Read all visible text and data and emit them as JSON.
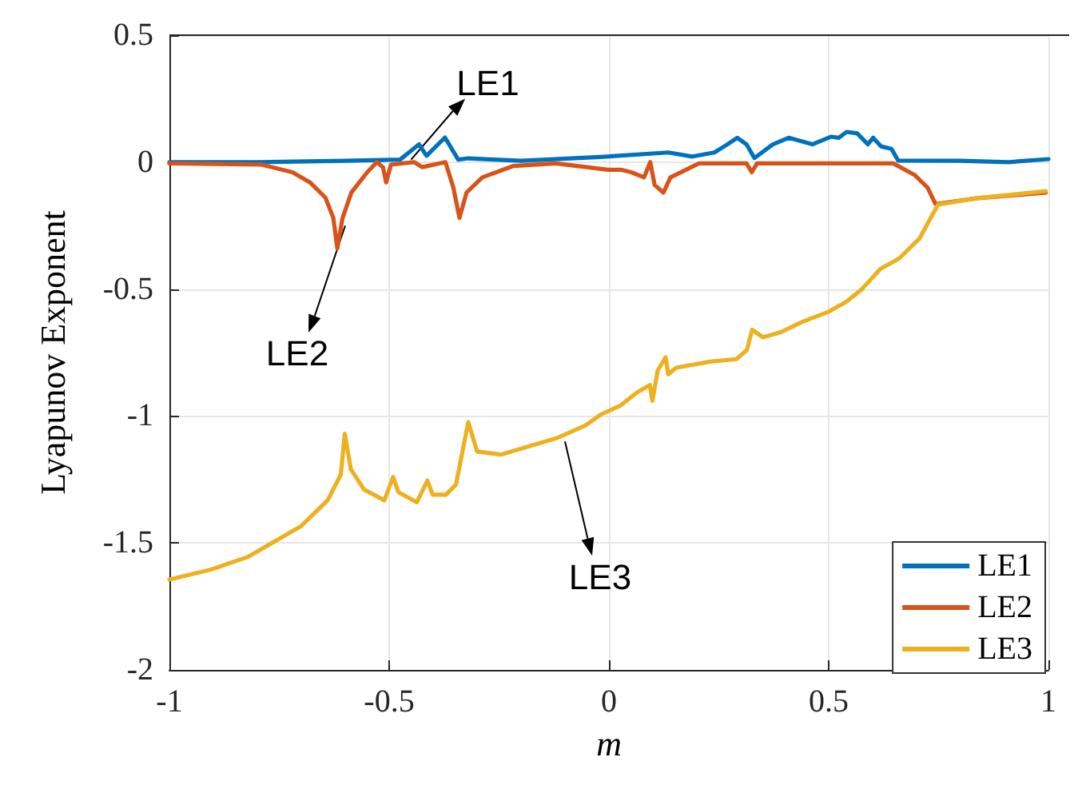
{
  "chart_data": {
    "type": "line",
    "xlabel": "m",
    "ylabel": "Lyapunov Exponent",
    "xlim": [
      -1,
      1
    ],
    "ylim": [
      -2,
      0.5
    ],
    "xticks": [
      -1,
      -0.5,
      0,
      0.5,
      1
    ],
    "yticks": [
      -2,
      -1.5,
      -1,
      -0.5,
      0,
      0.5
    ],
    "grid": true,
    "legend": "bottom right",
    "marker": "none",
    "line_style": "solid",
    "annotations": [
      {
        "text": "LE1",
        "x": -0.45,
        "y": 0.01
      },
      {
        "text": "LE2",
        "x": -0.6,
        "y": -0.25
      },
      {
        "text": "LE3",
        "x": -0.1,
        "y": -1.1
      }
    ],
    "series": [
      {
        "name": "LE1",
        "color": "#0072bd",
        "x": [
          -1,
          -0.8,
          -0.6,
          -0.475,
          -0.432,
          -0.415,
          -0.373,
          -0.343,
          -0.32,
          -0.2,
          -0.02,
          0.135,
          0.19,
          0.24,
          0.266,
          0.292,
          0.313,
          0.331,
          0.373,
          0.409,
          0.463,
          0.505,
          0.523,
          0.541,
          0.565,
          0.589,
          0.601,
          0.619,
          0.643,
          0.658,
          0.8,
          0.91,
          1
        ],
        "values": [
          0,
          0,
          0.005,
          0.01,
          0.07,
          0.025,
          0.097,
          0.01,
          0.015,
          0.005,
          0.02,
          0.038,
          0.022,
          0.038,
          0.066,
          0.096,
          0.07,
          0.016,
          0.07,
          0.096,
          0.07,
          0.1,
          0.096,
          0.119,
          0.113,
          0.07,
          0.096,
          0.062,
          0.052,
          0.006,
          0.005,
          0,
          0.012
        ]
      },
      {
        "name": "LE2",
        "color": "#d95319",
        "x": [
          -1,
          -0.79,
          -0.72,
          -0.68,
          -0.645,
          -0.627,
          -0.618,
          -0.606,
          -0.586,
          -0.55,
          -0.528,
          -0.514,
          -0.507,
          -0.496,
          -0.443,
          -0.425,
          -0.372,
          -0.354,
          -0.34,
          -0.324,
          -0.288,
          -0.217,
          -0.121,
          -0.05,
          -0.002,
          0.027,
          0.051,
          0.08,
          0.094,
          0.104,
          0.124,
          0.14,
          0.205,
          0.313,
          0.325,
          0.337,
          0.647,
          0.695,
          0.725,
          0.743,
          0.839,
          0.994
        ],
        "values": [
          -0.005,
          -0.01,
          -0.04,
          -0.08,
          -0.14,
          -0.22,
          -0.34,
          -0.22,
          -0.12,
          -0.04,
          0,
          -0.02,
          -0.08,
          -0.01,
          0,
          -0.02,
          0,
          -0.1,
          -0.22,
          -0.12,
          -0.06,
          -0.015,
          -0.005,
          -0.02,
          -0.03,
          -0.03,
          -0.04,
          -0.06,
          0,
          -0.09,
          -0.12,
          -0.06,
          -0.005,
          -0.005,
          -0.04,
          -0.005,
          -0.005,
          -0.05,
          -0.1,
          -0.165,
          -0.142,
          -0.12
        ]
      },
      {
        "name": "LE3",
        "color": "#edb120",
        "x": [
          -1,
          -0.904,
          -0.82,
          -0.7,
          -0.64,
          -0.61,
          -0.601,
          -0.587,
          -0.557,
          -0.511,
          -0.491,
          -0.479,
          -0.437,
          -0.413,
          -0.401,
          -0.371,
          -0.348,
          -0.32,
          -0.3,
          -0.246,
          -0.12,
          -0.054,
          -0.018,
          0.027,
          0.063,
          0.093,
          0.099,
          0.111,
          0.129,
          0.135,
          0.153,
          0.23,
          0.29,
          0.314,
          0.326,
          0.35,
          0.391,
          0.439,
          0.499,
          0.54,
          0.576,
          0.618,
          0.66,
          0.707,
          0.729,
          0.749,
          0.839,
          0.994
        ],
        "values": [
          -1.644,
          -1.604,
          -1.554,
          -1.433,
          -1.332,
          -1.23,
          -1.07,
          -1.21,
          -1.29,
          -1.332,
          -1.24,
          -1.3,
          -1.34,
          -1.254,
          -1.31,
          -1.31,
          -1.27,
          -1.024,
          -1.14,
          -1.152,
          -1.088,
          -1.038,
          -0.994,
          -0.958,
          -0.908,
          -0.878,
          -0.94,
          -0.82,
          -0.769,
          -0.836,
          -0.81,
          -0.786,
          -0.776,
          -0.74,
          -0.66,
          -0.69,
          -0.67,
          -0.63,
          -0.59,
          -0.55,
          -0.5,
          -0.42,
          -0.38,
          -0.3,
          -0.23,
          -0.167,
          -0.142,
          -0.114
        ]
      }
    ]
  }
}
